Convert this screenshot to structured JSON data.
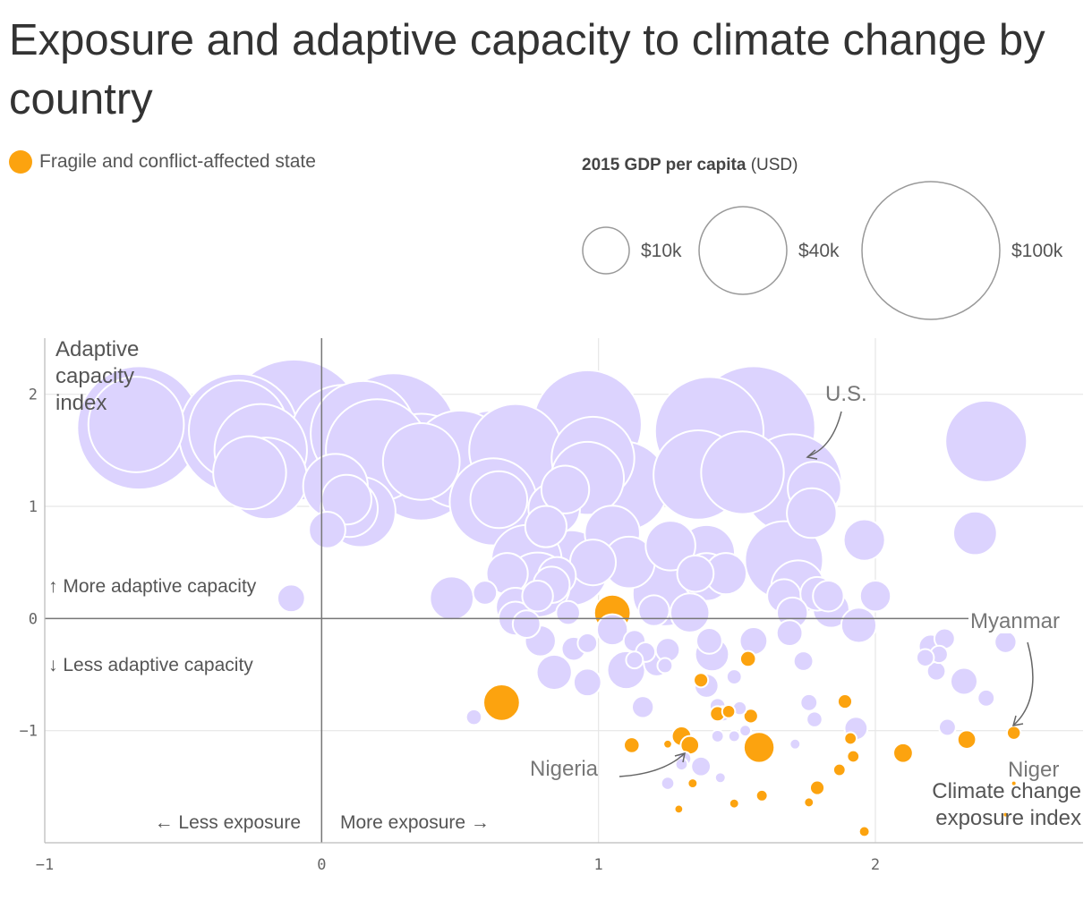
{
  "title": "Exposure and adaptive capacity to climate change by country",
  "legend": {
    "fragile_label": "Fragile and conflict-affected state",
    "fragile_color": "#fca30f",
    "base_color": "#dcd3fe",
    "size_title": "2015 GDP per capita",
    "size_unit": "(USD)",
    "sizes": [
      {
        "label": "$10k",
        "value": 10000
      },
      {
        "label": "$40k",
        "value": 40000
      },
      {
        "label": "$100k",
        "value": 100000
      }
    ]
  },
  "chart_data": {
    "type": "scatter",
    "xlabel": "Climate change exposure index",
    "ylabel": "Adaptive capacity index",
    "xlim": [
      -1,
      2.75
    ],
    "ylim": [
      -2,
      2.5
    ],
    "xticks": [
      "−1",
      "0",
      "1",
      "2"
    ],
    "yticks": [
      "2",
      "1",
      "0",
      "−1"
    ],
    "quadrant_labels": {
      "up": "↑ More adaptive capacity",
      "down": "↓ Less adaptive capacity",
      "left": "← Less exposure",
      "right": "More exposure →"
    },
    "annotations": [
      {
        "text": "U.S.",
        "x": 1.72,
        "y": 1.22
      },
      {
        "text": "Myanmar",
        "x": 2.5,
        "y": -1.0
      },
      {
        "text": "Nigeria",
        "x": 1.33,
        "y": -1.18
      },
      {
        "text": "Niger",
        "x": 2.5,
        "y": -1.45
      }
    ],
    "points": [
      {
        "x": -0.66,
        "y": 1.7,
        "gdp": 80000,
        "fragile": false
      },
      {
        "x": -0.67,
        "y": 1.73,
        "gdp": 48000,
        "fragile": false
      },
      {
        "x": -0.1,
        "y": 1.68,
        "gdp": 105000,
        "fragile": false
      },
      {
        "x": -0.3,
        "y": 1.65,
        "gdp": 75000,
        "fragile": false
      },
      {
        "x": -0.3,
        "y": 1.68,
        "gdp": 52000,
        "fragile": false
      },
      {
        "x": -0.22,
        "y": 1.5,
        "gdp": 45000,
        "fragile": false
      },
      {
        "x": -0.2,
        "y": 1.25,
        "gdp": 35000,
        "fragile": false
      },
      {
        "x": -0.26,
        "y": 1.3,
        "gdp": 28000,
        "fragile": false
      },
      {
        "x": 0.08,
        "y": 1.6,
        "gdp": 62000,
        "fragile": false
      },
      {
        "x": 0.15,
        "y": 1.65,
        "gdp": 58000,
        "fragile": false
      },
      {
        "x": 0.26,
        "y": 1.62,
        "gdp": 85000,
        "fragile": false
      },
      {
        "x": 0.2,
        "y": 1.5,
        "gdp": 55000,
        "fragile": false
      },
      {
        "x": 0.36,
        "y": 1.35,
        "gdp": 60000,
        "fragile": false
      },
      {
        "x": 0.36,
        "y": 1.4,
        "gdp": 31000,
        "fragile": false
      },
      {
        "x": 0.5,
        "y": 1.42,
        "gdp": 50000,
        "fragile": false
      },
      {
        "x": 0.05,
        "y": 1.18,
        "gdp": 22000,
        "fragile": false
      },
      {
        "x": 0.14,
        "y": 0.95,
        "gdp": 26000,
        "fragile": false
      },
      {
        "x": 0.1,
        "y": 0.98,
        "gdp": 17000,
        "fragile": false
      },
      {
        "x": 0.09,
        "y": 1.06,
        "gdp": 13000,
        "fragile": false
      },
      {
        "x": 0.02,
        "y": 0.79,
        "gdp": 7000,
        "fragile": false
      },
      {
        "x": -0.11,
        "y": 0.18,
        "gdp": 4000,
        "fragile": false
      },
      {
        "x": 0.62,
        "y": 1.38,
        "gdp": 60000,
        "fragile": false
      },
      {
        "x": 0.7,
        "y": 1.5,
        "gdp": 45000,
        "fragile": false
      },
      {
        "x": 0.96,
        "y": 1.73,
        "gdp": 62000,
        "fragile": false
      },
      {
        "x": 0.98,
        "y": 1.43,
        "gdp": 36000,
        "fragile": false
      },
      {
        "x": 0.96,
        "y": 1.25,
        "gdp": 28000,
        "fragile": false
      },
      {
        "x": 1.09,
        "y": 1.18,
        "gdp": 42000,
        "fragile": false
      },
      {
        "x": 0.62,
        "y": 1.04,
        "gdp": 40000,
        "fragile": false
      },
      {
        "x": 0.64,
        "y": 1.06,
        "gdp": 17000,
        "fragile": false
      },
      {
        "x": 0.84,
        "y": 0.98,
        "gdp": 14000,
        "fragile": false
      },
      {
        "x": 0.88,
        "y": 1.15,
        "gdp": 12000,
        "fragile": false
      },
      {
        "x": 0.81,
        "y": 0.82,
        "gdp": 9000,
        "fragile": false
      },
      {
        "x": 0.9,
        "y": 0.45,
        "gdp": 30000,
        "fragile": false
      },
      {
        "x": 0.74,
        "y": 0.52,
        "gdp": 26000,
        "fragile": false
      },
      {
        "x": 0.78,
        "y": 0.3,
        "gdp": 22000,
        "fragile": false
      },
      {
        "x": 1.05,
        "y": 0.76,
        "gdp": 16000,
        "fragile": false
      },
      {
        "x": 1.11,
        "y": 0.5,
        "gdp": 14000,
        "fragile": false
      },
      {
        "x": 0.98,
        "y": 0.5,
        "gdp": 11000,
        "fragile": false
      },
      {
        "x": 0.67,
        "y": 0.4,
        "gdp": 9000,
        "fragile": false
      },
      {
        "x": 0.85,
        "y": 0.38,
        "gdp": 7500,
        "fragile": false
      },
      {
        "x": 0.83,
        "y": 0.3,
        "gdp": 7000,
        "fragile": false
      },
      {
        "x": 0.59,
        "y": 0.23,
        "gdp": 3000,
        "fragile": false
      },
      {
        "x": 0.47,
        "y": 0.18,
        "gdp": 10000,
        "fragile": false
      },
      {
        "x": 0.7,
        "y": 0.1,
        "gdp": 8000,
        "fragile": false
      },
      {
        "x": 0.78,
        "y": 0.2,
        "gdp": 5000,
        "fragile": false
      },
      {
        "x": 0.7,
        "y": 0.0,
        "gdp": 6000,
        "fragile": false
      },
      {
        "x": 0.74,
        "y": -0.05,
        "gdp": 4000,
        "fragile": false
      },
      {
        "x": 0.89,
        "y": 0.05,
        "gdp": 3000,
        "fragile": false
      },
      {
        "x": 0.79,
        "y": -0.2,
        "gdp": 5000,
        "fragile": false
      },
      {
        "x": 0.96,
        "y": -0.22,
        "gdp": 2000,
        "fragile": false
      },
      {
        "x": 0.91,
        "y": -0.27,
        "gdp": 3000,
        "fragile": false
      },
      {
        "x": 0.84,
        "y": -0.48,
        "gdp": 6500,
        "fragile": false
      },
      {
        "x": 0.96,
        "y": -0.57,
        "gdp": 4000,
        "fragile": false
      },
      {
        "x": 0.55,
        "y": -0.88,
        "gdp": 1300,
        "fragile": false
      },
      {
        "x": 1.1,
        "y": -0.46,
        "gdp": 7500,
        "fragile": false
      },
      {
        "x": 1.05,
        "y": -0.1,
        "gdp": 5000,
        "fragile": false
      },
      {
        "x": 1.13,
        "y": -0.2,
        "gdp": 2500,
        "fragile": false
      },
      {
        "x": 1.17,
        "y": -0.3,
        "gdp": 2000,
        "fragile": false
      },
      {
        "x": 1.13,
        "y": -0.37,
        "gdp": 1500,
        "fragile": false
      },
      {
        "x": 1.21,
        "y": -0.4,
        "gdp": 3500,
        "fragile": false
      },
      {
        "x": 1.24,
        "y": -0.42,
        "gdp": 1200,
        "fragile": false
      },
      {
        "x": 1.25,
        "y": -0.28,
        "gdp": 3000,
        "fragile": false
      },
      {
        "x": 1.16,
        "y": -0.79,
        "gdp": 2500,
        "fragile": false
      },
      {
        "x": 1.24,
        "y": 0.22,
        "gdp": 22000,
        "fragile": false
      },
      {
        "x": 1.26,
        "y": 0.65,
        "gdp": 13000,
        "fragile": false
      },
      {
        "x": 1.39,
        "y": 0.58,
        "gdp": 17000,
        "fragile": false
      },
      {
        "x": 1.39,
        "y": 0.37,
        "gdp": 12000,
        "fragile": false
      },
      {
        "x": 1.46,
        "y": 0.4,
        "gdp": 9000,
        "fragile": false
      },
      {
        "x": 1.35,
        "y": 0.4,
        "gdp": 7000,
        "fragile": false
      },
      {
        "x": 1.33,
        "y": 0.05,
        "gdp": 8000,
        "fragile": false
      },
      {
        "x": 1.2,
        "y": 0.07,
        "gdp": 5000,
        "fragile": false
      },
      {
        "x": 1.4,
        "y": -0.2,
        "gdp": 3500,
        "fragile": false
      },
      {
        "x": 1.41,
        "y": -0.32,
        "gdp": 6000,
        "fragile": false
      },
      {
        "x": 1.39,
        "y": -0.6,
        "gdp": 3000,
        "fragile": false
      },
      {
        "x": 1.49,
        "y": -0.52,
        "gdp": 1200,
        "fragile": false
      },
      {
        "x": 1.56,
        "y": -0.2,
        "gdp": 4000,
        "fragile": false
      },
      {
        "x": 1.4,
        "y": 1.67,
        "gdp": 62000,
        "fragile": false
      },
      {
        "x": 1.56,
        "y": 1.7,
        "gdp": 80000,
        "fragile": false
      },
      {
        "x": 1.36,
        "y": 1.28,
        "gdp": 42000,
        "fragile": false
      },
      {
        "x": 1.52,
        "y": 1.3,
        "gdp": 36000,
        "fragile": false
      },
      {
        "x": 1.7,
        "y": 1.2,
        "gdp": 52000,
        "fragile": false
      },
      {
        "x": 1.78,
        "y": 1.16,
        "gdp": 15000,
        "fragile": false
      },
      {
        "x": 1.77,
        "y": 0.94,
        "gdp": 13000,
        "fragile": false
      },
      {
        "x": 1.96,
        "y": 0.7,
        "gdp": 9000,
        "fragile": false
      },
      {
        "x": 1.67,
        "y": 0.52,
        "gdp": 32000,
        "fragile": false
      },
      {
        "x": 1.72,
        "y": 0.28,
        "gdp": 15000,
        "fragile": false
      },
      {
        "x": 1.67,
        "y": 0.2,
        "gdp": 6000,
        "fragile": false
      },
      {
        "x": 1.7,
        "y": 0.05,
        "gdp": 5000,
        "fragile": false
      },
      {
        "x": 1.79,
        "y": 0.22,
        "gdp": 6000,
        "fragile": false
      },
      {
        "x": 1.83,
        "y": 0.2,
        "gdp": 5000,
        "fragile": false
      },
      {
        "x": 1.84,
        "y": 0.08,
        "gdp": 7000,
        "fragile": false
      },
      {
        "x": 1.94,
        "y": -0.06,
        "gdp": 6500,
        "fragile": false
      },
      {
        "x": 2.0,
        "y": 0.2,
        "gdp": 5000,
        "fragile": false
      },
      {
        "x": 1.69,
        "y": -0.13,
        "gdp": 3500,
        "fragile": false
      },
      {
        "x": 1.74,
        "y": -0.38,
        "gdp": 2000,
        "fragile": false
      },
      {
        "x": 1.76,
        "y": -0.75,
        "gdp": 1500,
        "fragile": false
      },
      {
        "x": 1.78,
        "y": -0.9,
        "gdp": 1300,
        "fragile": false
      },
      {
        "x": 1.93,
        "y": -0.98,
        "gdp": 2800,
        "fragile": false
      },
      {
        "x": 1.43,
        "y": -0.78,
        "gdp": 1300,
        "fragile": false
      },
      {
        "x": 1.45,
        "y": -0.85,
        "gdp": 1200,
        "fragile": false
      },
      {
        "x": 1.51,
        "y": -0.8,
        "gdp": 1000,
        "fragile": false
      },
      {
        "x": 1.43,
        "y": -1.05,
        "gdp": 800,
        "fragile": false
      },
      {
        "x": 1.49,
        "y": -1.05,
        "gdp": 700,
        "fragile": false
      },
      {
        "x": 1.53,
        "y": -1.0,
        "gdp": 700,
        "fragile": false
      },
      {
        "x": 1.71,
        "y": -1.12,
        "gdp": 600,
        "fragile": false
      },
      {
        "x": 1.37,
        "y": -1.32,
        "gdp": 2000,
        "fragile": false
      },
      {
        "x": 1.31,
        "y": -1.25,
        "gdp": 1000,
        "fragile": false
      },
      {
        "x": 1.3,
        "y": -1.3,
        "gdp": 800,
        "fragile": false
      },
      {
        "x": 1.25,
        "y": -1.47,
        "gdp": 900,
        "fragile": false
      },
      {
        "x": 1.44,
        "y": -1.42,
        "gdp": 600,
        "fragile": false
      },
      {
        "x": 2.2,
        "y": -0.25,
        "gdp": 3000,
        "fragile": false
      },
      {
        "x": 2.23,
        "y": -0.32,
        "gdp": 1600,
        "fragile": false
      },
      {
        "x": 2.25,
        "y": -0.18,
        "gdp": 2200,
        "fragile": false
      },
      {
        "x": 2.18,
        "y": -0.35,
        "gdp": 1600,
        "fragile": false
      },
      {
        "x": 2.22,
        "y": -0.47,
        "gdp": 1800,
        "fragile": false
      },
      {
        "x": 2.32,
        "y": -0.56,
        "gdp": 3800,
        "fragile": false
      },
      {
        "x": 2.4,
        "y": -0.71,
        "gdp": 1500,
        "fragile": false
      },
      {
        "x": 2.26,
        "y": -0.97,
        "gdp": 1500,
        "fragile": false
      },
      {
        "x": 2.47,
        "y": -0.21,
        "gdp": 2500,
        "fragile": false
      },
      {
        "x": 2.4,
        "y": 1.58,
        "gdp": 35000,
        "fragile": false
      },
      {
        "x": 2.36,
        "y": 0.76,
        "gdp": 10000,
        "fragile": false
      },
      {
        "x": 1.05,
        "y": 0.05,
        "gdp": 7000,
        "fragile": true
      },
      {
        "x": 0.65,
        "y": -0.75,
        "gdp": 7000,
        "fragile": true
      },
      {
        "x": 1.3,
        "y": -1.05,
        "gdp": 2000,
        "fragile": true
      },
      {
        "x": 1.33,
        "y": -1.13,
        "gdp": 1800,
        "fragile": true
      },
      {
        "x": 1.58,
        "y": -1.15,
        "gdp": 5000,
        "fragile": true
      },
      {
        "x": 1.12,
        "y": -1.13,
        "gdp": 1300,
        "fragile": true
      },
      {
        "x": 1.25,
        "y": -1.12,
        "gdp": 400,
        "fragile": true
      },
      {
        "x": 1.43,
        "y": -0.85,
        "gdp": 1200,
        "fragile": true
      },
      {
        "x": 1.47,
        "y": -0.83,
        "gdp": 900,
        "fragile": true
      },
      {
        "x": 1.55,
        "y": -0.87,
        "gdp": 1100,
        "fragile": true
      },
      {
        "x": 1.37,
        "y": -0.55,
        "gdp": 1100,
        "fragile": true
      },
      {
        "x": 1.54,
        "y": -0.36,
        "gdp": 1300,
        "fragile": true
      },
      {
        "x": 1.89,
        "y": -0.74,
        "gdp": 1100,
        "fragile": true
      },
      {
        "x": 1.91,
        "y": -1.07,
        "gdp": 800,
        "fragile": true
      },
      {
        "x": 1.92,
        "y": -1.23,
        "gdp": 800,
        "fragile": true
      },
      {
        "x": 1.87,
        "y": -1.35,
        "gdp": 800,
        "fragile": true
      },
      {
        "x": 1.79,
        "y": -1.51,
        "gdp": 1100,
        "fragile": true
      },
      {
        "x": 1.76,
        "y": -1.64,
        "gdp": 500,
        "fragile": true
      },
      {
        "x": 2.1,
        "y": -1.2,
        "gdp": 2000,
        "fragile": true
      },
      {
        "x": 2.33,
        "y": -1.08,
        "gdp": 1800,
        "fragile": true
      },
      {
        "x": 2.5,
        "y": -1.02,
        "gdp": 1000,
        "fragile": true
      },
      {
        "x": 2.5,
        "y": -1.47,
        "gdp": 120,
        "fragile": true
      },
      {
        "x": 2.47,
        "y": -1.75,
        "gdp": 150,
        "fragile": true
      },
      {
        "x": 1.59,
        "y": -1.58,
        "gdp": 700,
        "fragile": true
      },
      {
        "x": 1.49,
        "y": -1.65,
        "gdp": 500,
        "fragile": true
      },
      {
        "x": 1.34,
        "y": -1.47,
        "gdp": 500,
        "fragile": true
      },
      {
        "x": 1.29,
        "y": -1.7,
        "gdp": 400,
        "fragile": true
      },
      {
        "x": 1.96,
        "y": -1.9,
        "gdp": 600,
        "fragile": true
      }
    ]
  }
}
